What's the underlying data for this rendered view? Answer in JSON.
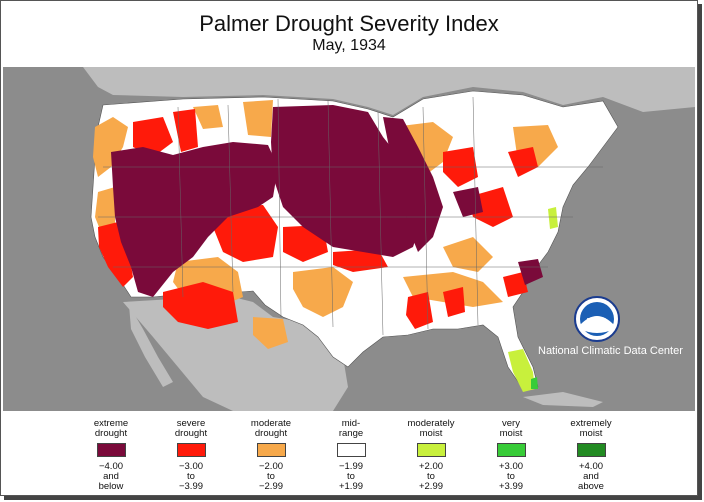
{
  "title": "Palmer Drought Severity Index",
  "subtitle": "May, 1934",
  "credit": "National Climatic Data Center",
  "logo_text": "NOAA",
  "colors": {
    "background": "#8c8c8c",
    "ocean": "#8c8c8c",
    "extreme": "#7a0a3a",
    "severe": "#ff1a0a",
    "moderate": "#f7a94b",
    "mid": "#ffffff",
    "moist": "#c8f03c",
    "very_moist": "#38cc38",
    "extremely_moist": "#228b22"
  },
  "legend": [
    {
      "label": "extreme\ndrought",
      "range": "−4.00\nand\nbelow",
      "color": "#7a0a3a"
    },
    {
      "label": "severe\ndrought",
      "range": "−3.00\nto\n−3.99",
      "color": "#ff1a0a"
    },
    {
      "label": "moderate\ndrought",
      "range": "−2.00\nto\n−2.99",
      "color": "#f7a94b"
    },
    {
      "label": "mid-\nrange",
      "range": "−1.99\nto\n+1.99",
      "color": "#ffffff"
    },
    {
      "label": "moderately\nmoist",
      "range": "+2.00\nto\n+2.99",
      "color": "#c8f03c"
    },
    {
      "label": "very\nmoist",
      "range": "+3.00\nto\n+3.99",
      "color": "#38cc38"
    },
    {
      "label": "extremely\nmoist",
      "range": "+4.00\nand\nabove",
      "color": "#228b22"
    }
  ]
}
